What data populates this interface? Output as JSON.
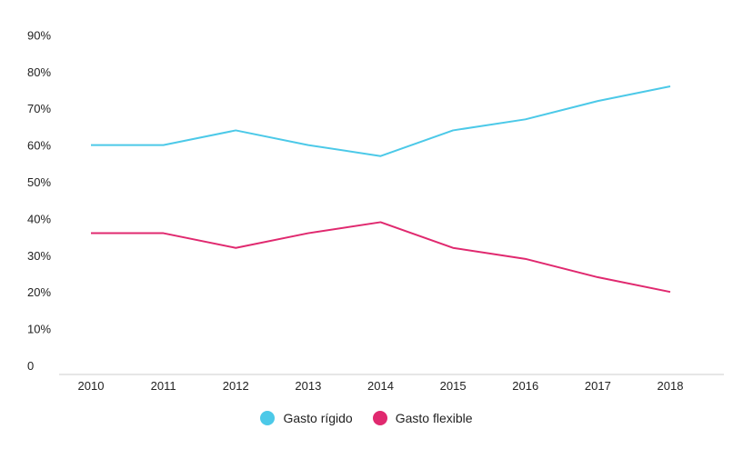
{
  "chart_data": {
    "type": "line",
    "x": [
      "2010",
      "2011",
      "2012",
      "2013",
      "2014",
      "2015",
      "2016",
      "2017",
      "2018"
    ],
    "series": [
      {
        "name": "Gasto rígido",
        "values": [
          60,
          60,
          64,
          60,
          57,
          64,
          67,
          72,
          76
        ],
        "color": "#4cc9e8"
      },
      {
        "name": "Gasto flexible",
        "values": [
          36,
          36,
          32,
          36,
          39,
          32,
          29,
          24,
          20
        ],
        "color": "#e0296f"
      }
    ],
    "yticks": [
      "0",
      "10%",
      "20%",
      "30%",
      "40%",
      "50%",
      "60%",
      "70%",
      "80%",
      "90%"
    ],
    "ylim": [
      0,
      90
    ],
    "legend_position": "bottom-center",
    "grid": false
  }
}
